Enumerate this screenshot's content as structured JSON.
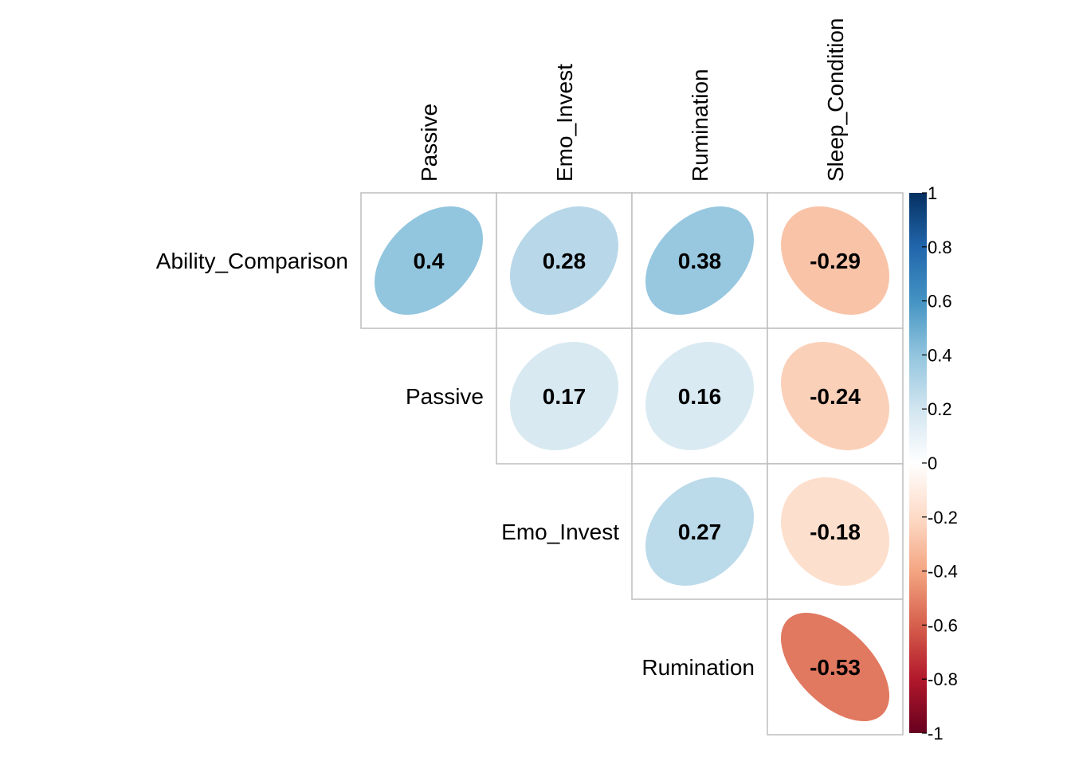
{
  "chart_data": {
    "type": "heatmap",
    "style": "corrplot-ellipse-upper",
    "row_labels": [
      "Ability_Comparison",
      "Passive",
      "Emo_Invest",
      "Rumination"
    ],
    "col_labels": [
      "Passive",
      "Emo_Invest",
      "Rumination",
      "Sleep_Condition"
    ],
    "cells": [
      {
        "row": "Ability_Comparison",
        "col": "Passive",
        "value": 0.4,
        "label": "0.4"
      },
      {
        "row": "Ability_Comparison",
        "col": "Emo_Invest",
        "value": 0.28,
        "label": "0.28"
      },
      {
        "row": "Ability_Comparison",
        "col": "Rumination",
        "value": 0.38,
        "label": "0.38"
      },
      {
        "row": "Ability_Comparison",
        "col": "Sleep_Condition",
        "value": -0.29,
        "label": "-0.29"
      },
      {
        "row": "Passive",
        "col": "Emo_Invest",
        "value": 0.17,
        "label": "0.17"
      },
      {
        "row": "Passive",
        "col": "Rumination",
        "value": 0.16,
        "label": "0.16"
      },
      {
        "row": "Passive",
        "col": "Sleep_Condition",
        "value": -0.24,
        "label": "-0.24"
      },
      {
        "row": "Emo_Invest",
        "col": "Rumination",
        "value": 0.27,
        "label": "0.27"
      },
      {
        "row": "Emo_Invest",
        "col": "Sleep_Condition",
        "value": -0.18,
        "label": "-0.18"
      },
      {
        "row": "Rumination",
        "col": "Sleep_Condition",
        "value": -0.53,
        "label": "-0.53"
      }
    ],
    "colorbar": {
      "range": [
        -1,
        1
      ],
      "ticks": [
        "1",
        "0.8",
        "0.6",
        "0.4",
        "0.2",
        "0",
        "-0.2",
        "-0.4",
        "-0.6",
        "-0.8",
        "-1"
      ],
      "colors": [
        "#67001F",
        "#B2182B",
        "#D6604D",
        "#F4A582",
        "#FDDBC7",
        "#FFFFFF",
        "#D1E5F0",
        "#92C5DE",
        "#4393C3",
        "#2166AC",
        "#053061"
      ]
    },
    "grid_color": "#BEBEBE"
  }
}
